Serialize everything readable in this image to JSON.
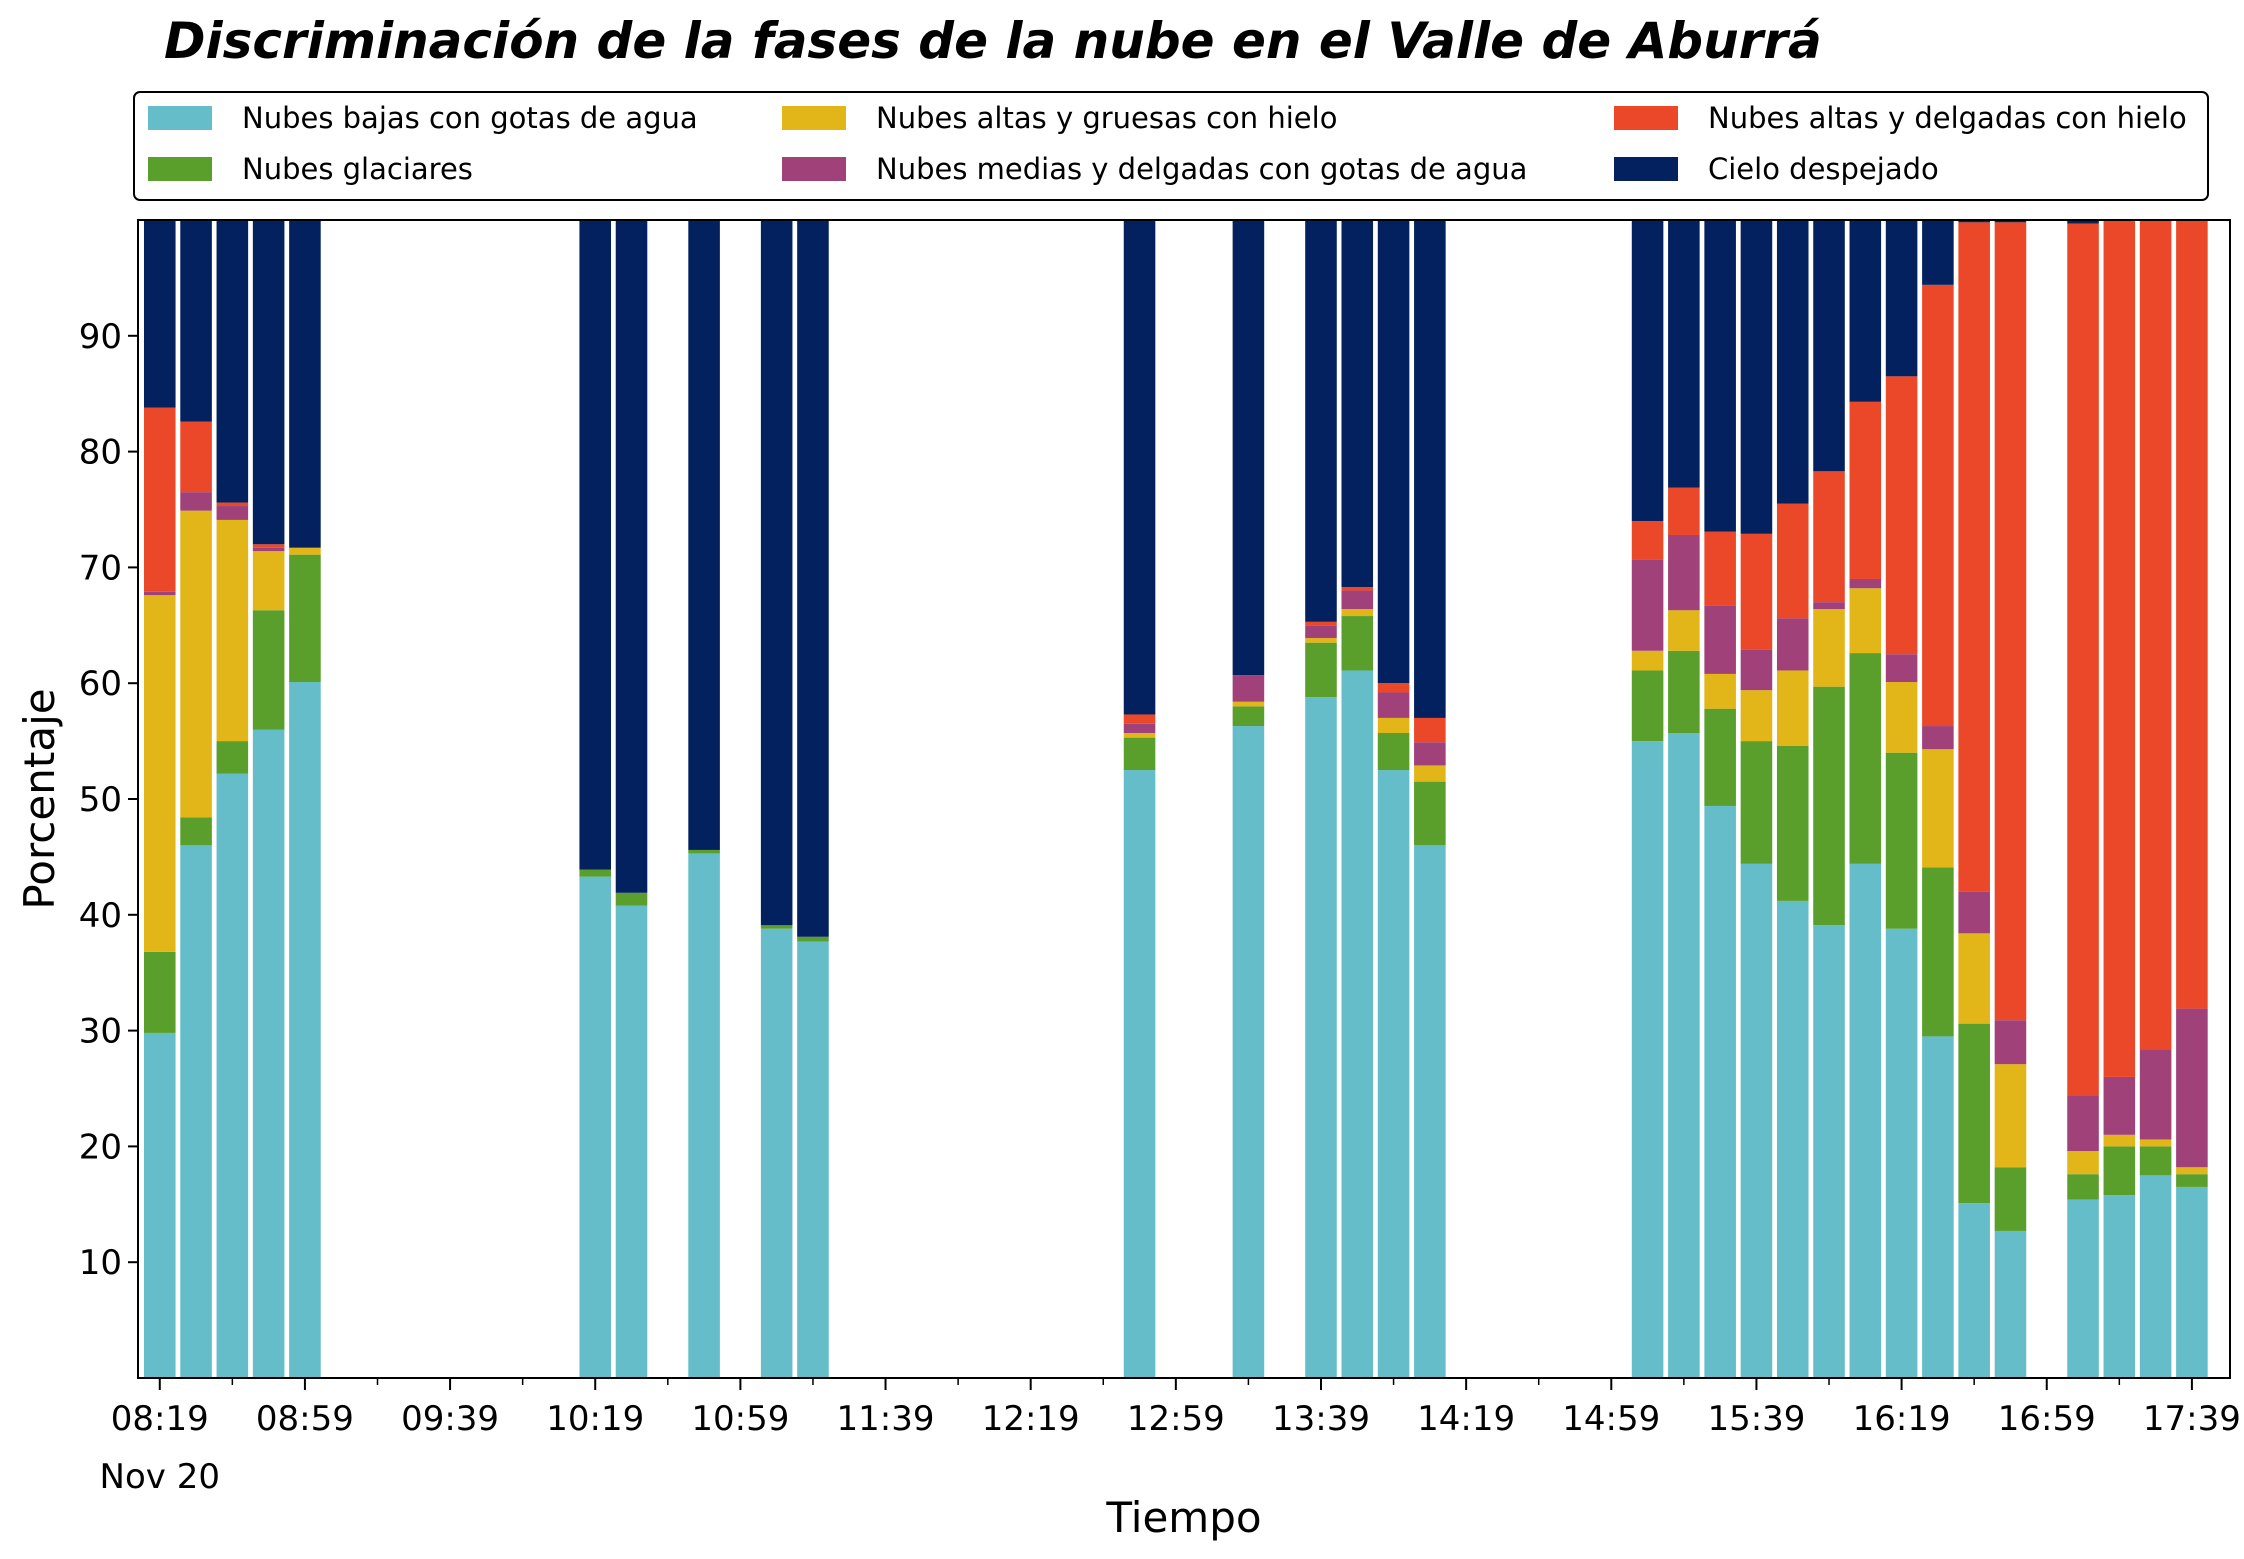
{
  "chart_data": {
    "type": "bar",
    "stacked": true,
    "title": "Discriminación de la fases de la nube en el Valle de Aburrá",
    "xlabel": "Tiempo",
    "ylabel": "Porcentaje",
    "ylim": [
      0,
      100
    ],
    "yticks": [
      10,
      20,
      30,
      40,
      50,
      60,
      70,
      80,
      90
    ],
    "x_start": "08:19",
    "x_end": "17:49",
    "xticks": [
      "08:19",
      "08:59",
      "09:39",
      "10:19",
      "10:59",
      "11:39",
      "12:19",
      "12:59",
      "13:39",
      "14:19",
      "14:59",
      "15:39",
      "16:19",
      "16:59",
      "17:39"
    ],
    "x_minor_ticks": [
      "08:39",
      "09:19",
      "09:59",
      "10:39",
      "11:19",
      "11:59",
      "12:39",
      "13:19",
      "13:59",
      "14:39",
      "15:19",
      "15:59",
      "16:39",
      "17:19"
    ],
    "date_label": "Nov 20",
    "legend_position": "top",
    "grid": false,
    "times": [
      "08:19",
      "08:29",
      "08:39",
      "08:49",
      "08:59",
      "10:19",
      "10:29",
      "10:49",
      "11:09",
      "11:19",
      "12:49",
      "13:19",
      "13:39",
      "13:49",
      "13:59",
      "14:09",
      "15:09",
      "15:19",
      "15:29",
      "15:39",
      "15:49",
      "15:59",
      "16:09",
      "16:19",
      "16:29",
      "16:39",
      "16:49",
      "17:09",
      "17:19",
      "17:29",
      "17:39"
    ],
    "series": [
      {
        "name": "Nubes bajas con gotas de agua",
        "color": "#64bdc9",
        "values": [
          29.8,
          46.0,
          52.2,
          56.0,
          60.1,
          43.3,
          40.8,
          45.3,
          38.8,
          37.7,
          52.5,
          56.3,
          58.8,
          61.1,
          52.5,
          46.0,
          55.0,
          55.7,
          49.4,
          44.4,
          41.2,
          39.1,
          44.4,
          38.8,
          29.5,
          15.1,
          12.7,
          15.4,
          15.8,
          17.5,
          16.5
        ]
      },
      {
        "name": "Nubes glaciares",
        "color": "#5a9e2b",
        "values": [
          7.0,
          2.4,
          2.8,
          10.3,
          11.0,
          0.6,
          1.1,
          0.3,
          0.3,
          0.4,
          2.8,
          1.7,
          4.7,
          4.7,
          3.2,
          5.5,
          6.1,
          7.1,
          8.4,
          10.6,
          13.4,
          20.6,
          18.2,
          15.2,
          14.6,
          15.5,
          5.5,
          2.2,
          4.2,
          2.5,
          1.1
        ]
      },
      {
        "name": "Nubes altas y gruesas con hielo",
        "color": "#e2b518",
        "values": [
          30.8,
          26.5,
          19.1,
          5.1,
          0.6,
          0.0,
          0.0,
          0.0,
          0.0,
          0.0,
          0.4,
          0.4,
          0.4,
          0.6,
          1.3,
          1.4,
          1.7,
          3.5,
          3.0,
          4.4,
          6.5,
          6.7,
          5.6,
          6.1,
          10.2,
          7.8,
          8.9,
          2.0,
          1.0,
          0.6,
          0.6
        ]
      },
      {
        "name": "Nubes medias y delgadas con gotas de agua",
        "color": "#a0417a",
        "values": [
          0.3,
          1.6,
          1.2,
          0.3,
          0.0,
          0.0,
          0.0,
          0.0,
          0.0,
          0.0,
          0.8,
          2.3,
          1.1,
          1.6,
          2.2,
          2.0,
          7.9,
          6.5,
          5.9,
          3.5,
          4.5,
          0.6,
          0.8,
          2.4,
          2.0,
          3.6,
          3.8,
          4.8,
          5.0,
          7.8,
          13.7
        ]
      },
      {
        "name": "Nubes altas y delgadas con hielo",
        "color": "#ea4829",
        "values": [
          15.9,
          6.1,
          0.3,
          0.3,
          0.0,
          0.0,
          0.0,
          0.0,
          0.0,
          0.0,
          0.8,
          0.0,
          0.3,
          0.3,
          0.8,
          2.1,
          3.3,
          4.1,
          6.4,
          10.0,
          9.9,
          11.3,
          15.3,
          24.0,
          38.1,
          57.8,
          68.9,
          75.3,
          73.9,
          71.5,
          68.1
        ]
      },
      {
        "name": "Cielo despejado",
        "color": "#03215e",
        "values": [
          16.2,
          17.4,
          24.4,
          28.0,
          28.3,
          56.1,
          58.1,
          54.4,
          60.9,
          61.9,
          42.7,
          39.3,
          34.7,
          31.7,
          40.0,
          43.0,
          26.0,
          23.1,
          26.9,
          27.1,
          24.5,
          21.7,
          15.7,
          13.5,
          5.6,
          0.2,
          0.2,
          0.3,
          0.1,
          0.1,
          0.0
        ]
      }
    ]
  }
}
